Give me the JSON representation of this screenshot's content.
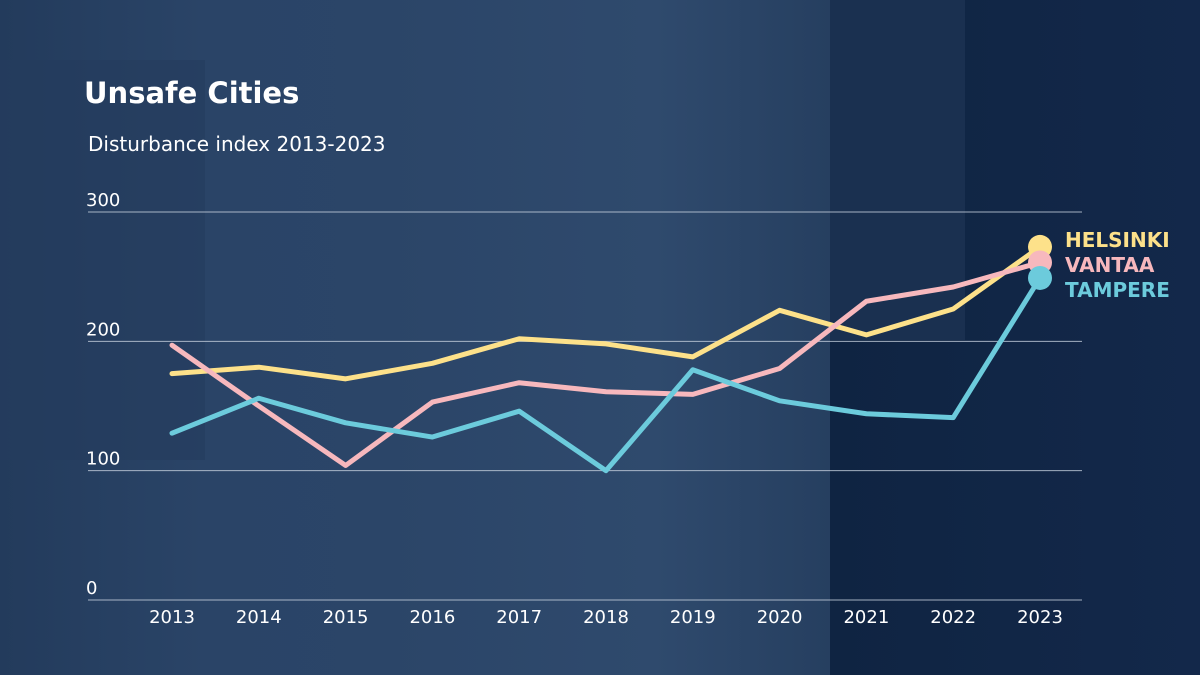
{
  "chart_data": {
    "type": "line",
    "title": "Unsafe Cities",
    "subtitle": "Disturbance index 2013-2023",
    "categories": [
      "2013",
      "2014",
      "2015",
      "2016",
      "2017",
      "2018",
      "2019",
      "2020",
      "2021",
      "2022",
      "2023"
    ],
    "ylim": [
      0,
      300
    ],
    "yticks": [
      "0",
      "100",
      "200",
      "300"
    ],
    "grid": true,
    "legend": "right-end labels",
    "series": [
      {
        "name": "HELSINKI",
        "color": "#fde18a",
        "values": [
          175,
          180,
          171,
          183,
          202,
          198,
          188,
          224,
          205,
          225,
          273
        ]
      },
      {
        "name": "VANTAA",
        "color": "#f7b8bd",
        "values": [
          197,
          150,
          104,
          153,
          168,
          161,
          159,
          179,
          231,
          242,
          261
        ]
      },
      {
        "name": "TAMPERE",
        "color": "#6ccbdc",
        "values": [
          129,
          156,
          137,
          126,
          146,
          100,
          178,
          154,
          144,
          141,
          249
        ]
      }
    ]
  }
}
